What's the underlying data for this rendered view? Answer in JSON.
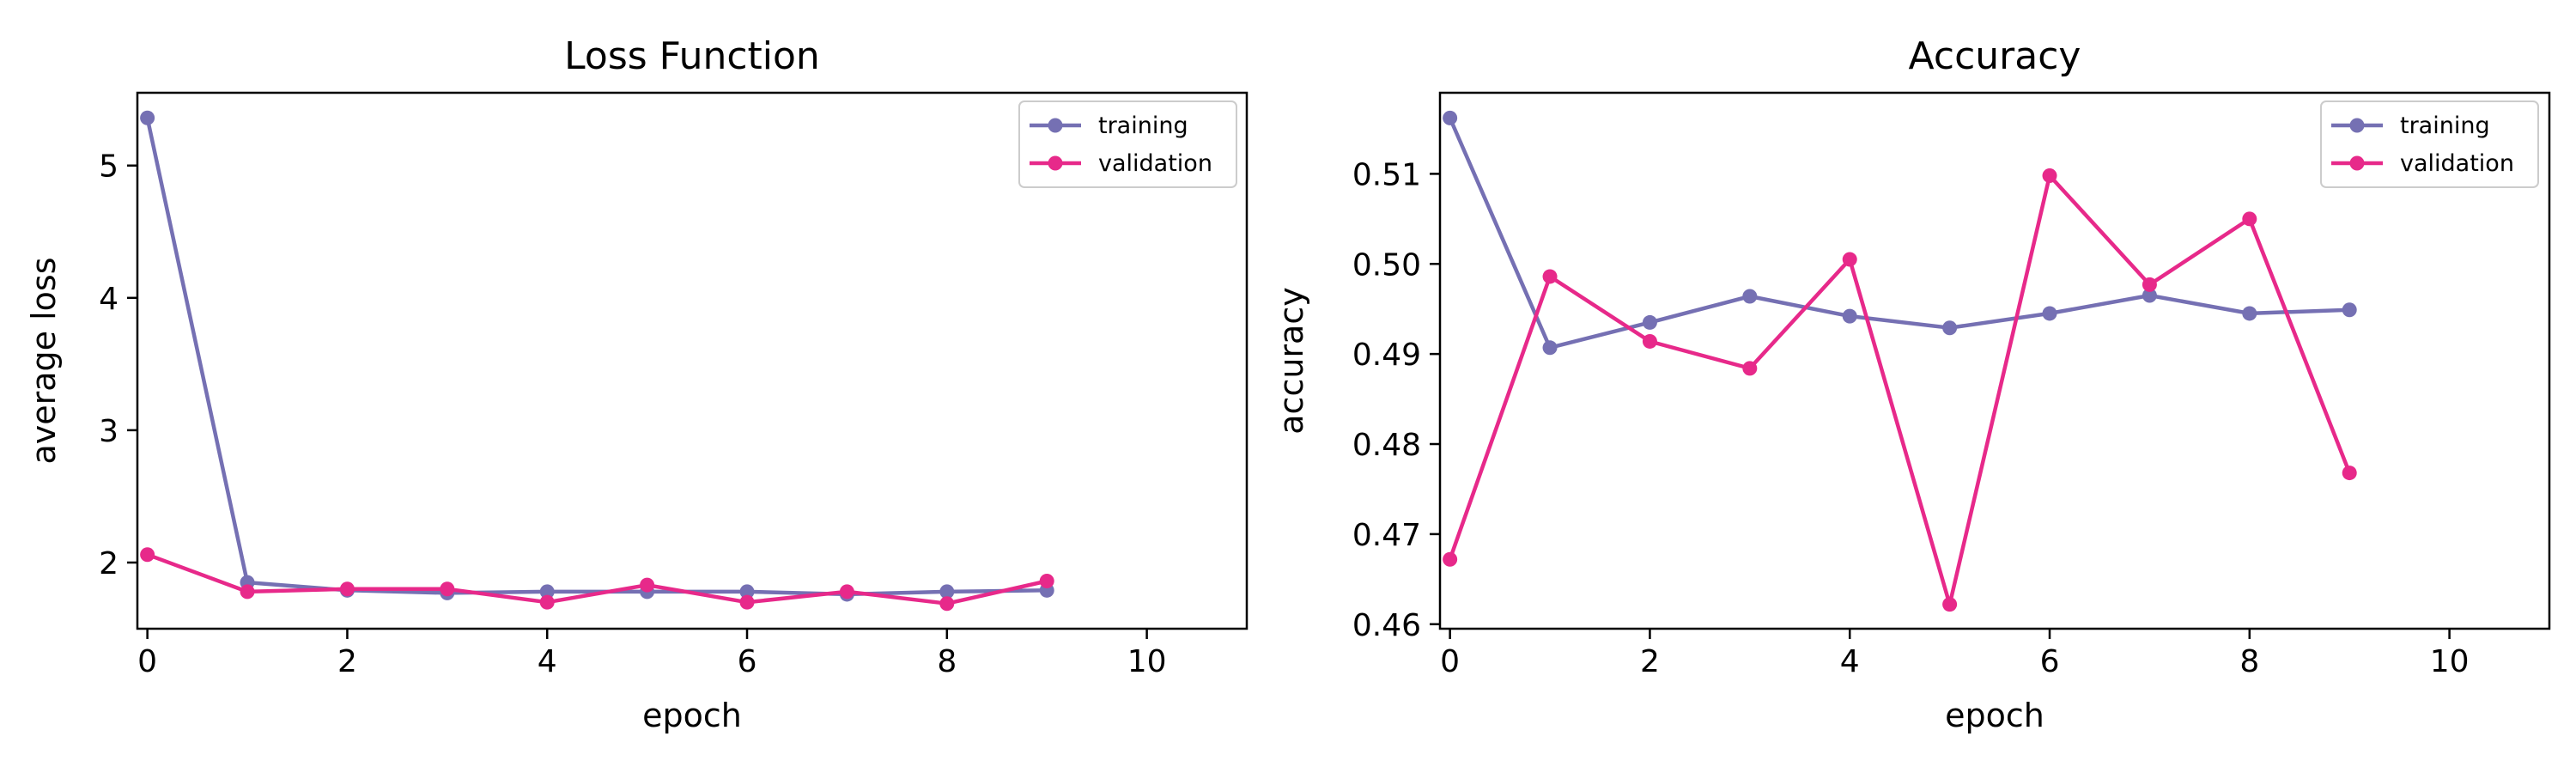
{
  "chart_data": [
    {
      "type": "line",
      "title": "Loss Function",
      "xlabel": "epoch",
      "ylabel": "average loss",
      "xlim": [
        -0.1,
        11
      ],
      "ylim": [
        1.5,
        5.55
      ],
      "xticks": [
        0,
        2,
        4,
        6,
        8,
        10
      ],
      "yticks": [
        2,
        3,
        4,
        5
      ],
      "x": [
        0,
        1,
        2,
        3,
        4,
        5,
        6,
        7,
        8,
        9
      ],
      "legend_position": "top-right",
      "grid": false,
      "series": [
        {
          "name": "training",
          "color": "#7570b3",
          "values": [
            5.36,
            1.85,
            1.79,
            1.77,
            1.78,
            1.78,
            1.78,
            1.76,
            1.78,
            1.79
          ]
        },
        {
          "name": "validation",
          "color": "#e7298a",
          "values": [
            2.06,
            1.78,
            1.8,
            1.8,
            1.7,
            1.83,
            1.7,
            1.78,
            1.69,
            1.86
          ]
        }
      ]
    },
    {
      "type": "line",
      "title": "Accuracy",
      "xlabel": "epoch",
      "ylabel": "accuracy",
      "xlim": [
        -0.1,
        11
      ],
      "ylim": [
        0.4595,
        0.519
      ],
      "xticks": [
        0,
        2,
        4,
        6,
        8,
        10
      ],
      "yticks": [
        0.46,
        0.47,
        0.48,
        0.49,
        0.5,
        0.51
      ],
      "x": [
        0,
        1,
        2,
        3,
        4,
        5,
        6,
        7,
        8,
        9
      ],
      "legend_position": "top-right",
      "grid": false,
      "series": [
        {
          "name": "training",
          "color": "#7570b3",
          "values": [
            0.5162,
            0.4907,
            0.4935,
            0.4964,
            0.4942,
            0.4929,
            0.4945,
            0.4965,
            0.4945,
            0.4949
          ]
        },
        {
          "name": "validation",
          "color": "#e7298a",
          "values": [
            0.4672,
            0.4986,
            0.4914,
            0.4884,
            0.5005,
            0.4622,
            0.5098,
            0.4977,
            0.505,
            0.4768
          ]
        }
      ]
    }
  ]
}
